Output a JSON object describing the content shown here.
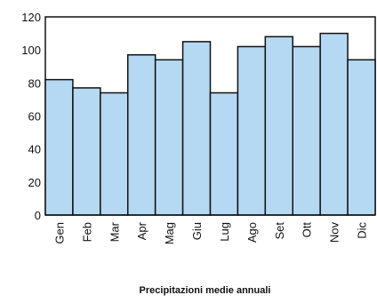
{
  "chart_data": {
    "type": "bar",
    "title": "",
    "xlabel": "Precipitazioni medie annuali",
    "ylabel": "",
    "categories": [
      "Gen",
      "Feb",
      "Mar",
      "Apr",
      "Mag",
      "Giu",
      "Lug",
      "Ago",
      "Set",
      "Ott",
      "Nov",
      "Dic"
    ],
    "values": [
      82,
      77,
      74,
      97,
      94,
      105,
      74,
      102,
      108,
      102,
      110,
      94
    ],
    "ylim": [
      0,
      120
    ],
    "yticks": [
      0,
      20,
      40,
      60,
      80,
      100,
      120
    ],
    "grid": false,
    "legend": "none",
    "colors": {
      "bar_fill": "#b5d9f2",
      "bar_stroke": "#111111",
      "axis": "#111111",
      "background": "#ffffff"
    }
  }
}
